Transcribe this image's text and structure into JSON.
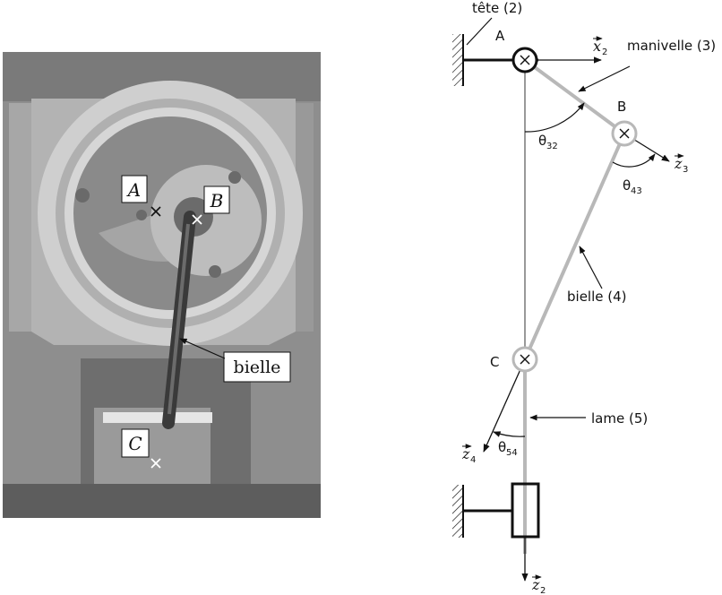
{
  "photo": {
    "point_a": "A",
    "point_b": "B",
    "point_c": "C",
    "bielle_label": "bielle"
  },
  "schema": {
    "tete_label": "tête (2)",
    "manivelle_label": "manivelle (3)",
    "bielle_label": "bielle (4)",
    "lame_label": "lame (5)",
    "point_a": "A",
    "point_b": "B",
    "point_c": "C",
    "x2": "x",
    "x2_sub": "2",
    "z2": "z",
    "z2_sub": "2",
    "z3": "z",
    "z3_sub": "3",
    "z4": "z",
    "z4_sub": "4",
    "theta32": "θ",
    "theta32_sub": "32",
    "theta43": "θ",
    "theta43_sub": "43",
    "theta54": "θ",
    "theta54_sub": "54"
  },
  "colors": {
    "photo_gray": "#8e8e8e",
    "link_gray": "#b8b8b8",
    "ink": "#111111"
  }
}
